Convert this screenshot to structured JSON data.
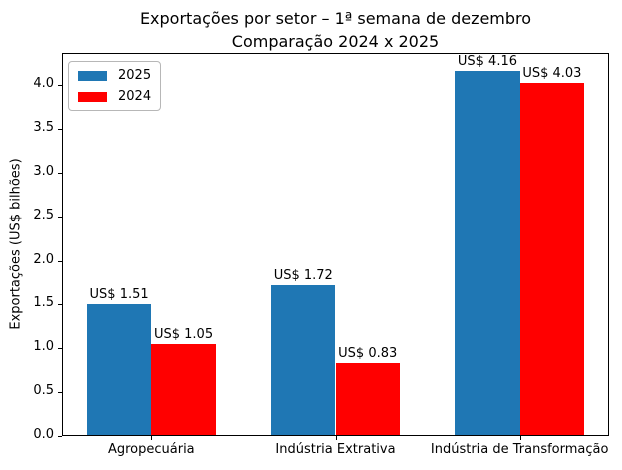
{
  "chart_data": {
    "type": "bar",
    "title": "Exportações por setor – 1ª semana de dezembro\nComparação 2024 x 2025",
    "ylabel": "Exportações (US$ bilhões)",
    "xlabel": "",
    "categories": [
      "Agropecuária",
      "Indústria Extrativa",
      "Indústria de Transformação"
    ],
    "series": [
      {
        "name": "2025",
        "color": "#1f77b4",
        "values": [
          1.51,
          1.72,
          4.16
        ],
        "value_labels": [
          "US$ 1.51",
          "US$ 1.72",
          "US$ 4.16"
        ]
      },
      {
        "name": "2024",
        "color": "#ff0000",
        "values": [
          1.05,
          0.83,
          4.03
        ],
        "value_labels": [
          "US$ 1.05",
          "US$ 0.83",
          "US$ 4.03"
        ]
      }
    ],
    "bar_width": 0.35,
    "ylim": [
      0,
      4.368
    ],
    "xlim": [
      -0.485,
      2.485
    ],
    "yticks": [
      0,
      0.5,
      1,
      1.5,
      2,
      2.5,
      3,
      3.5,
      4
    ],
    "grid": false,
    "legend_position": "upper left"
  }
}
